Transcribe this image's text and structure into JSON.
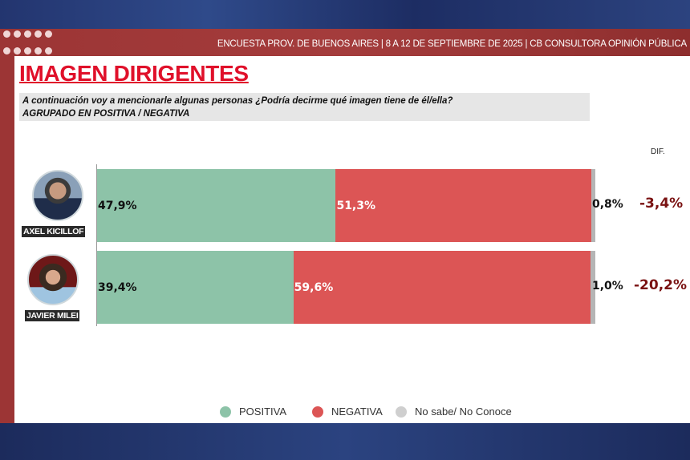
{
  "header": {
    "source": "ENCUESTA PROV. DE BUENOS AIRES | 8 A 12 DE SEPTIEMBRE DE 2025 | CB CONSULTORA OPINIÓN PÚBLICA"
  },
  "title": "IMAGEN DIRIGENTES",
  "question": {
    "line1": "A continuación voy a mencionarle algunas personas  ¿Podría decirme qué imagen tiene de él/ella?",
    "line2": "AGRUPADO EN POSITIVA / NEGATIVA"
  },
  "colors": {
    "positiva": "#8dc3a8",
    "negativa": "#dc5555",
    "no_sabe": "#b5b5b5",
    "title": "#e0102a",
    "dif": "#7a1212"
  },
  "chart_data": {
    "type": "bar",
    "orientation": "horizontal-stacked-100",
    "categories": [
      "AXEL KICILLOF",
      "JAVIER MILEI"
    ],
    "series": [
      {
        "name": "POSITIVA",
        "values": [
          47.9,
          39.4
        ],
        "labels": [
          "47,9%",
          "39,4%"
        ]
      },
      {
        "name": "NEGATIVA",
        "values": [
          51.3,
          59.6
        ],
        "labels": [
          "51,3%",
          "59,6%"
        ]
      },
      {
        "name": "No sabe/ No Conoce",
        "values": [
          0.8,
          1.0
        ],
        "labels": [
          "0,8%",
          "1,0%"
        ]
      }
    ],
    "dif_header": "DIF.",
    "dif": [
      "-3,4%",
      "-20,2%"
    ],
    "xlim": [
      0,
      100
    ],
    "legend_position": "bottom"
  }
}
